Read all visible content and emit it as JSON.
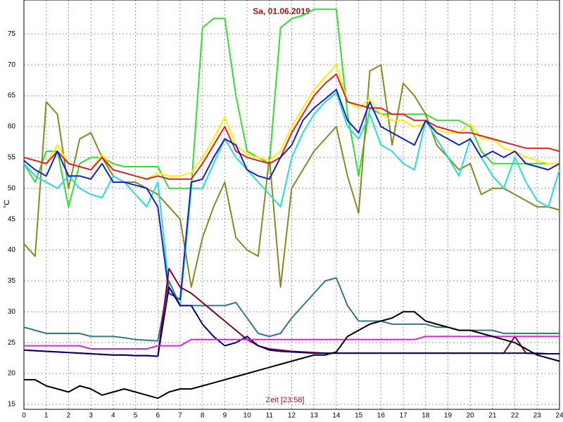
{
  "chart_data": {
    "type": "line",
    "title": "Sa, 01.06.2019",
    "xlabel": "Zeit [23:58]",
    "ylabel": "°C",
    "x": [
      0,
      0.5,
      1,
      1.5,
      2,
      2.5,
      3,
      3.5,
      4,
      4.5,
      5,
      5.5,
      6,
      6.5,
      7,
      7.5,
      8,
      8.5,
      9,
      9.5,
      10,
      10.5,
      11,
      11.5,
      12,
      12.5,
      13,
      13.5,
      14,
      14.5,
      15,
      15.5,
      16,
      16.5,
      17,
      17.5,
      18,
      18.5,
      19,
      19.5,
      20,
      20.5,
      21,
      21.5,
      22,
      22.5,
      23,
      23.5,
      24
    ],
    "xlim": [
      0,
      24
    ],
    "ylim": [
      14.2,
      80.5
    ],
    "xticks": [
      0,
      1,
      2,
      3,
      4,
      5,
      6,
      7,
      8,
      9,
      10,
      11,
      12,
      13,
      14,
      15,
      16,
      17,
      18,
      19,
      20,
      21,
      22,
      23,
      24
    ],
    "yticks": [
      15,
      20,
      25,
      30,
      35,
      40,
      45,
      50,
      55,
      60,
      65,
      70,
      75
    ],
    "grid": true,
    "series": [
      {
        "color": "#33dd33",
        "values": [
          54,
          51,
          56,
          56,
          47,
          54,
          55,
          55,
          54,
          53.5,
          53.5,
          53.5,
          53.5,
          50,
          50,
          50,
          76,
          77.5,
          77.5,
          65,
          56,
          55,
          54,
          76,
          77.5,
          78,
          79,
          79,
          79,
          62,
          52,
          63,
          62,
          62,
          62,
          62,
          62,
          61,
          61,
          61,
          60,
          56,
          54,
          54,
          54,
          54,
          54,
          54,
          54
        ]
      },
      {
        "color": "#888822",
        "values": [
          41,
          39,
          64,
          62,
          50,
          58,
          59,
          55,
          52,
          51,
          51,
          50,
          49,
          47,
          45,
          34,
          42,
          47,
          51,
          42,
          40,
          39,
          55,
          34,
          50,
          53,
          56,
          58,
          60,
          52,
          46,
          69,
          70,
          57,
          67,
          65,
          62,
          57,
          55,
          53,
          54,
          49,
          50,
          50,
          49,
          48,
          47,
          47,
          46.5
        ]
      },
      {
        "color": "#ffee00",
        "values": [
          55,
          54.5,
          54,
          57,
          54,
          53.5,
          53,
          55.5,
          53,
          52.5,
          52,
          51.5,
          52.5,
          52,
          52,
          52.5,
          55,
          58,
          61.5,
          57,
          55.5,
          55,
          54.5,
          56,
          60,
          63,
          66,
          68,
          70,
          64,
          63,
          64.5,
          62,
          61,
          61,
          60,
          60.5,
          59.5,
          59,
          59,
          60.5,
          58,
          58,
          56.5,
          56,
          55,
          54.5,
          54,
          54
        ]
      },
      {
        "color": "#dd2222",
        "values": [
          55,
          54.5,
          54,
          56,
          54,
          53.5,
          53,
          55,
          53,
          52.5,
          52,
          51.5,
          52,
          51.5,
          51.5,
          51.5,
          54,
          57,
          60,
          56,
          55,
          54.5,
          54,
          55,
          59,
          62,
          65,
          67,
          68.5,
          64,
          63.5,
          63,
          63,
          62,
          62,
          61,
          61,
          60,
          59.5,
          59,
          59,
          58.5,
          58,
          57.5,
          57,
          56.5,
          56.5,
          56.5,
          56
        ]
      },
      {
        "color": "#22dddd",
        "values": [
          54,
          52,
          51,
          50,
          52,
          50,
          49,
          48.5,
          52,
          51,
          49,
          47,
          51,
          34,
          31,
          50,
          50,
          54,
          58,
          55,
          53,
          51,
          49,
          47,
          55,
          59,
          62,
          64,
          65.5,
          60,
          58,
          62,
          57,
          56,
          54,
          53,
          61,
          58,
          55,
          52,
          58,
          55,
          52,
          50,
          55,
          51,
          48,
          47,
          53
        ]
      },
      {
        "color": "#1122cc",
        "values": [
          54.5,
          53,
          52,
          56,
          52,
          52,
          51.5,
          54,
          51,
          51,
          50.5,
          50,
          47,
          33,
          32,
          51,
          51.5,
          55,
          58,
          57,
          53,
          52,
          51.5,
          55,
          57,
          61,
          63,
          64.5,
          66,
          61,
          59,
          64,
          60,
          59,
          58,
          57,
          61,
          59,
          58,
          57,
          58,
          55,
          56,
          55,
          56,
          54,
          53.5,
          53,
          54
        ]
      },
      {
        "color": "#337788",
        "values": [
          27.5,
          27,
          26.5,
          26.5,
          26.5,
          26.5,
          26,
          26,
          26,
          25.8,
          25.5,
          25.4,
          25.3,
          35,
          31,
          31,
          31,
          31,
          31,
          31.5,
          29,
          26.5,
          26,
          26.5,
          29,
          31,
          33,
          35,
          35.5,
          31,
          28.5,
          28.5,
          28.5,
          28,
          28,
          28,
          28,
          27.5,
          27.5,
          27,
          27,
          27,
          27,
          26.5,
          26.5,
          26.5,
          26.5,
          26.5,
          26.5
        ]
      },
      {
        "color": "#880022",
        "values": [
          23.8,
          23.7,
          23.6,
          23.5,
          23.4,
          23.3,
          23.2,
          23.1,
          23,
          23,
          22.9,
          22.9,
          22.8,
          37,
          34,
          33,
          31.5,
          30,
          28.5,
          27,
          25.5,
          24.5,
          24,
          23.8,
          23.6,
          23.5,
          23.4,
          23.3,
          23.3,
          23.3,
          23.3,
          23.3,
          23.3,
          23.3,
          23.3,
          23.3,
          23.3,
          23.3,
          23.3,
          23.3,
          23.3,
          23.3,
          23.3,
          23.3,
          26,
          23.3,
          23.3,
          23.2,
          23.2
        ]
      },
      {
        "color": "#000080",
        "values": [
          23.8,
          23.7,
          23.6,
          23.5,
          23.4,
          23.3,
          23.2,
          23.1,
          23,
          23,
          22.9,
          22.9,
          22.8,
          34,
          31,
          31,
          28,
          26,
          24.5,
          25,
          26,
          24.5,
          23.8,
          23.6,
          23.5,
          23.4,
          23.3,
          23.3,
          23.3,
          23.3,
          23.3,
          23.3,
          23.3,
          23.3,
          23.3,
          23.3,
          23.3,
          23.3,
          23.3,
          23.3,
          23.3,
          23.3,
          23.3,
          23.3,
          23.3,
          23.3,
          23.2,
          23.2,
          23.2
        ]
      },
      {
        "color": "#dd22dd",
        "values": [
          24.5,
          24.5,
          24.5,
          24.5,
          24.5,
          24.5,
          24,
          24,
          24,
          24,
          24,
          24,
          24.5,
          24.5,
          24.5,
          25.5,
          25.5,
          25.5,
          25.5,
          25.5,
          25.5,
          25.5,
          25.5,
          25.5,
          25.5,
          25.5,
          25.5,
          25.5,
          25.5,
          25.5,
          25.5,
          25.5,
          25.5,
          25.5,
          25.5,
          25.5,
          26,
          26,
          26,
          26,
          26,
          26,
          26,
          26,
          26,
          26,
          26,
          26,
          26
        ]
      },
      {
        "color": "#000000",
        "values": [
          19,
          19,
          18,
          17.5,
          17,
          18,
          17.5,
          16.5,
          17,
          17.5,
          17,
          16.5,
          16,
          17,
          17.5,
          17.5,
          18,
          18.5,
          19,
          19.5,
          20,
          20.5,
          21,
          21.5,
          22,
          22.5,
          23,
          23,
          23.5,
          26,
          27,
          28,
          28.5,
          29,
          30,
          30,
          28.5,
          28,
          27.5,
          27,
          27,
          26.5,
          26,
          25.5,
          25,
          24,
          23,
          22.5,
          22
        ]
      }
    ]
  }
}
